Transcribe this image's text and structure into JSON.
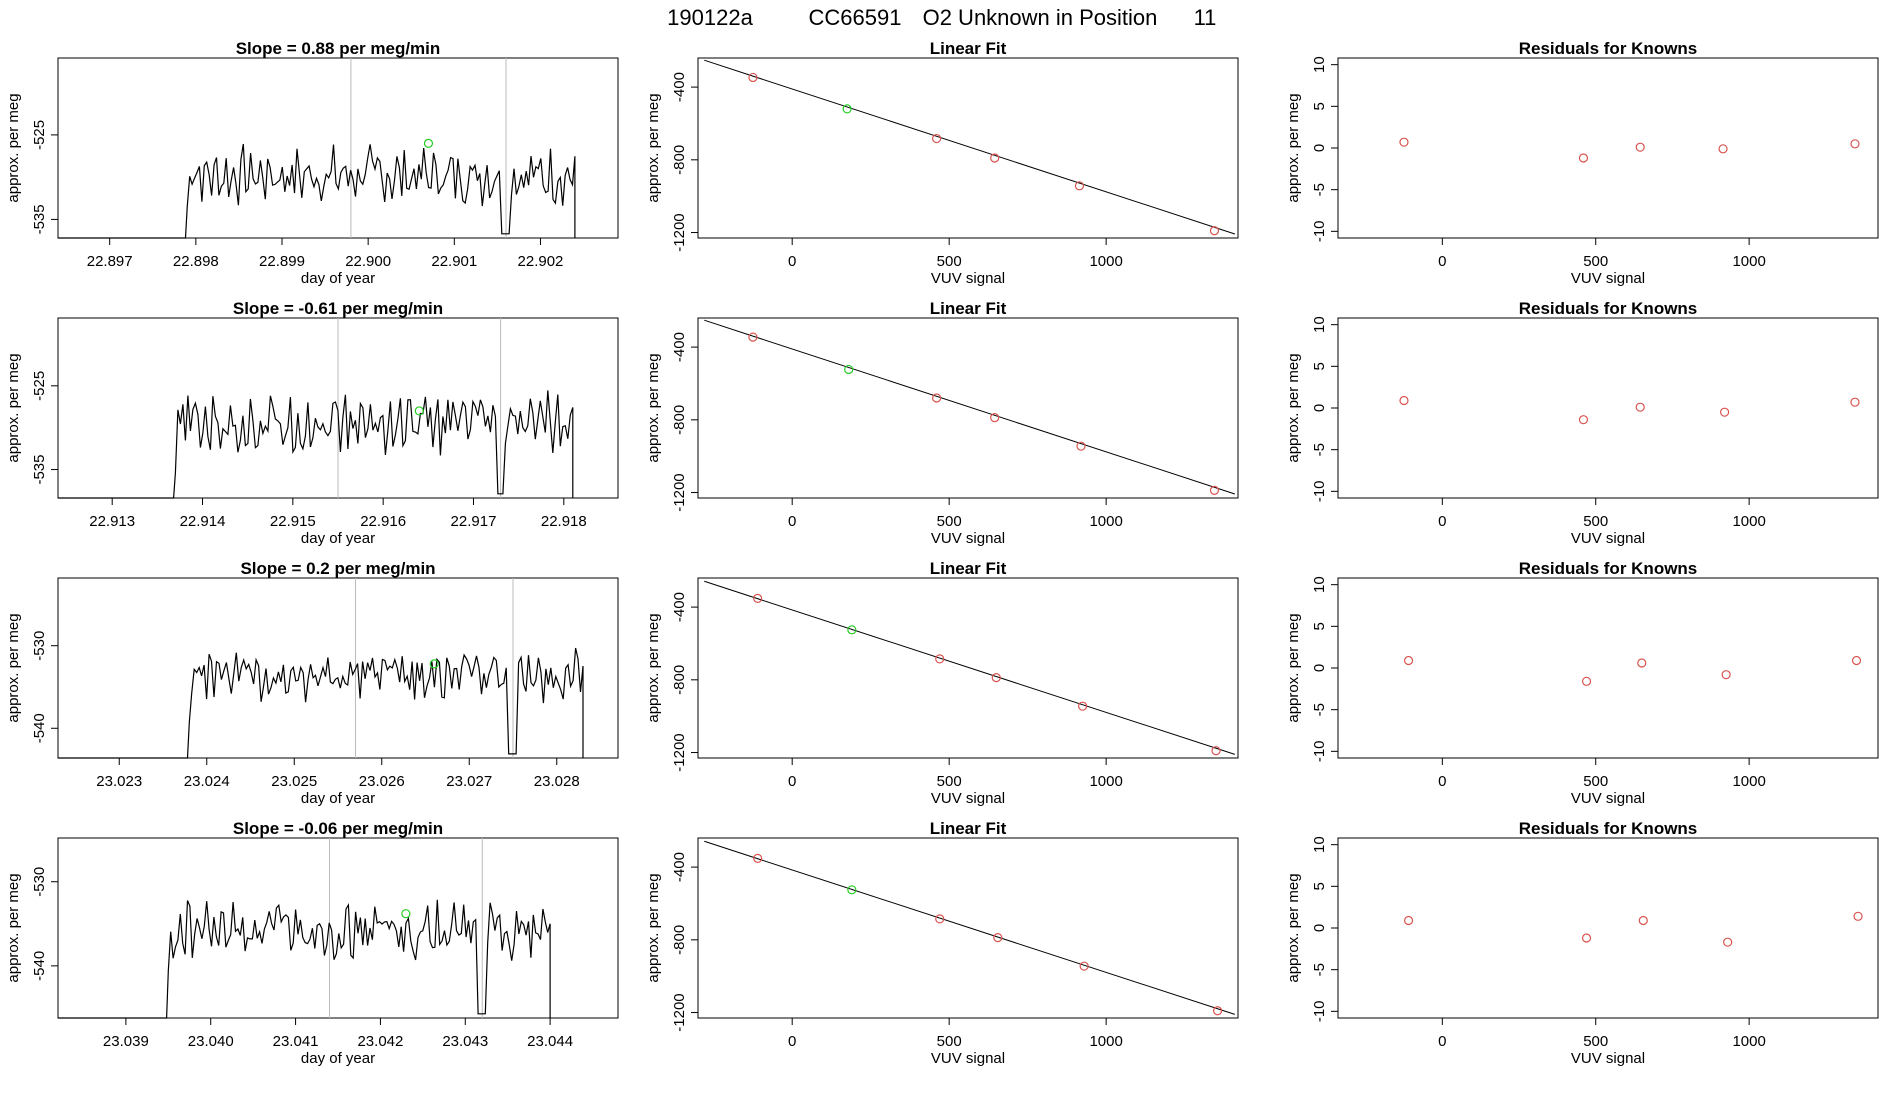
{
  "figure_title": {
    "run": "190122a",
    "cylinder": "CC66591",
    "desc": "O2 Unknown in Position",
    "position": "11"
  },
  "labels": {
    "day_of_year": "day of year",
    "approx_per_meg": "approx. per meg",
    "vuv_signal": "VUV signal",
    "linear_fit": "Linear Fit",
    "residuals": "Residuals for Knowns",
    "slope_prefix": "Slope = ",
    "slope_suffix": " per meg/min"
  },
  "colors": {
    "known": "#d9534f",
    "unknown": "#22cc22",
    "line": "#000000",
    "vline": "#bbbbbb"
  },
  "chart_data": [
    {
      "type": "line",
      "row": 0,
      "title": "Slope =  0.88  per meg/min",
      "slope": "0.88",
      "xlabel": "day of year",
      "ylabel": "approx. per meg",
      "xlim": [
        22.8964,
        22.9029
      ],
      "ylim": [
        -537.2,
        -515.9
      ],
      "xticks": [
        "22.897",
        "22.898",
        "22.899",
        "22.900",
        "22.901",
        "22.902"
      ],
      "yticks": [
        "-535",
        "-525"
      ],
      "x_start": 22.8979,
      "x_end": 22.9024,
      "y_base": -529.8,
      "amplitude": 2.6,
      "ramp": [
        -533.5,
        -531.5,
        -528.5,
        -527.6
      ],
      "vlines": [
        22.8998,
        22.9016
      ],
      "green_point": [
        22.9007,
        -526.0
      ]
    },
    {
      "type": "line",
      "row": 1,
      "title": "Slope =  -0.61  per meg/min",
      "slope": "-0.61",
      "xlabel": "day of year",
      "ylabel": "approx. per meg",
      "xlim": [
        22.9124,
        22.9186
      ],
      "ylim": [
        -538.4,
        -516.9
      ],
      "xticks": [
        "22.913",
        "22.914",
        "22.915",
        "22.916",
        "22.917",
        "22.918"
      ],
      "yticks": [
        "-535",
        "-525"
      ],
      "x_start": 22.9137,
      "x_end": 22.9181,
      "y_base": -529.5,
      "amplitude": 2.8,
      "ramp": [
        -535.5,
        -532.0,
        -529.0,
        -528.5
      ],
      "vlines": [
        22.9155,
        22.9173
      ],
      "green_point": [
        22.9164,
        -528.0
      ]
    },
    {
      "type": "line",
      "row": 2,
      "title": "Slope =  0.2  per meg/min",
      "slope": "0.2",
      "xlabel": "day of year",
      "ylabel": "approx. per meg",
      "xlim": [
        23.0223,
        23.0287
      ],
      "ylim": [
        -543.6,
        -521.8
      ],
      "xticks": [
        "23.023",
        "23.024",
        "23.025",
        "23.026",
        "23.027",
        "23.028"
      ],
      "yticks": [
        "-540",
        "-530"
      ],
      "x_start": 23.0238,
      "x_end": 23.0283,
      "y_base": -533.6,
      "amplitude": 2.3,
      "ramp": [
        -539.5,
        -536.5,
        -534.0,
        -533.0
      ],
      "vlines": [
        23.0257,
        23.0275
      ],
      "green_point": [
        23.0266,
        -532.2
      ]
    },
    {
      "type": "line",
      "row": 3,
      "title": "Slope =  -0.06  per meg/min",
      "slope": "-0.06",
      "xlabel": "day of year",
      "ylabel": "approx. per meg",
      "xlim": [
        23.0382,
        23.0448
      ],
      "ylim": [
        -546.2,
        -524.8
      ],
      "xticks": [
        "23.039",
        "23.040",
        "23.041",
        "23.042",
        "23.043",
        "23.044"
      ],
      "yticks": [
        "-540",
        "-530"
      ],
      "x_start": 23.0395,
      "x_end": 23.044,
      "y_base": -535.8,
      "amplitude": 2.6,
      "ramp": [
        -541.0,
        -539.0,
        -537.0,
        -536.0
      ],
      "vlines": [
        23.0414,
        23.0432
      ],
      "green_point": [
        23.0423,
        -533.8
      ]
    },
    {
      "type": "scatter",
      "row": 0,
      "title": "Linear Fit",
      "xlabel": "VUV signal",
      "ylabel": "approx. per meg",
      "xlim": [
        -300,
        1420
      ],
      "ylim": [
        -1230,
        -240
      ],
      "xticks": [
        0,
        500,
        1000
      ],
      "yticks": [
        -400,
        -800,
        -1200
      ],
      "line": [
        [
          -280,
          -252
        ],
        [
          1410,
          -1208
        ]
      ],
      "known": [
        [
          -125,
          -347
        ],
        [
          460,
          -683
        ],
        [
          645,
          -790
        ],
        [
          915,
          -943
        ],
        [
          1345,
          -1190
        ]
      ],
      "unknown": [
        [
          175,
          -520
        ]
      ]
    },
    {
      "type": "scatter",
      "row": 1,
      "title": "Linear Fit",
      "xlabel": "VUV signal",
      "ylabel": "approx. per meg",
      "xlim": [
        -300,
        1420
      ],
      "ylim": [
        -1230,
        -240
      ],
      "xticks": [
        0,
        500,
        1000
      ],
      "yticks": [
        -400,
        -800,
        -1200
      ],
      "line": [
        [
          -280,
          -252
        ],
        [
          1410,
          -1208
        ]
      ],
      "known": [
        [
          -125,
          -345
        ],
        [
          460,
          -680
        ],
        [
          645,
          -788
        ],
        [
          920,
          -945
        ],
        [
          1345,
          -1188
        ]
      ],
      "unknown": [
        [
          180,
          -523
        ]
      ]
    },
    {
      "type": "scatter",
      "row": 2,
      "title": "Linear Fit",
      "xlabel": "VUV signal",
      "ylabel": "approx. per meg",
      "xlim": [
        -300,
        1420
      ],
      "ylim": [
        -1230,
        -240
      ],
      "xticks": [
        0,
        500,
        1000
      ],
      "yticks": [
        -400,
        -800,
        -1200
      ],
      "line": [
        [
          -280,
          -258
        ],
        [
          1410,
          -1210
        ]
      ],
      "known": [
        [
          -110,
          -352
        ],
        [
          470,
          -685
        ],
        [
          650,
          -788
        ],
        [
          925,
          -945
        ],
        [
          1350,
          -1190
        ]
      ],
      "unknown": [
        [
          190,
          -525
        ]
      ]
    },
    {
      "type": "scatter",
      "row": 3,
      "title": "Linear Fit",
      "xlabel": "VUV signal",
      "ylabel": "approx. per meg",
      "xlim": [
        -300,
        1420
      ],
      "ylim": [
        -1230,
        -240
      ],
      "xticks": [
        0,
        500,
        1000
      ],
      "yticks": [
        -400,
        -800,
        -1200
      ],
      "line": [
        [
          -280,
          -258
        ],
        [
          1410,
          -1210
        ]
      ],
      "known": [
        [
          -110,
          -352
        ],
        [
          470,
          -685
        ],
        [
          655,
          -788
        ],
        [
          930,
          -945
        ],
        [
          1355,
          -1190
        ]
      ],
      "unknown": [
        [
          190,
          -525
        ]
      ]
    },
    {
      "type": "scatter",
      "row": 0,
      "title": "Residuals for Knowns",
      "xlabel": "VUV signal",
      "ylabel": "approx. per meg",
      "xlim": [
        -340,
        1420
      ],
      "ylim": [
        -10.8,
        10.8
      ],
      "xticks": [
        0,
        500,
        1000
      ],
      "yticks": [
        -10,
        -5,
        0,
        5,
        10
      ],
      "points": [
        [
          -125,
          0.7
        ],
        [
          460,
          -1.2
        ],
        [
          645,
          0.1
        ],
        [
          915,
          -0.1
        ],
        [
          1345,
          0.5
        ]
      ]
    },
    {
      "type": "scatter",
      "row": 1,
      "title": "Residuals for Knowns",
      "xlabel": "VUV signal",
      "ylabel": "approx. per meg",
      "xlim": [
        -340,
        1420
      ],
      "ylim": [
        -10.8,
        10.8
      ],
      "xticks": [
        0,
        500,
        1000
      ],
      "yticks": [
        -10,
        -5,
        0,
        5,
        10
      ],
      "points": [
        [
          -125,
          0.9
        ],
        [
          460,
          -1.4
        ],
        [
          645,
          0.1
        ],
        [
          920,
          -0.5
        ],
        [
          1345,
          0.7
        ]
      ]
    },
    {
      "type": "scatter",
      "row": 2,
      "title": "Residuals for Knowns",
      "xlabel": "VUV signal",
      "ylabel": "approx. per meg",
      "xlim": [
        -340,
        1420
      ],
      "ylim": [
        -10.8,
        10.8
      ],
      "xticks": [
        0,
        500,
        1000
      ],
      "yticks": [
        -10,
        -5,
        0,
        5,
        10
      ],
      "points": [
        [
          -110,
          0.9
        ],
        [
          470,
          -1.6
        ],
        [
          650,
          0.6
        ],
        [
          925,
          -0.8
        ],
        [
          1350,
          0.9
        ]
      ]
    },
    {
      "type": "scatter",
      "row": 3,
      "title": "Residuals for Knowns",
      "xlabel": "VUV signal",
      "ylabel": "approx. per meg",
      "xlim": [
        -340,
        1420
      ],
      "ylim": [
        -10.8,
        10.8
      ],
      "xticks": [
        0,
        500,
        1000
      ],
      "yticks": [
        -10,
        -5,
        0,
        5,
        10
      ],
      "points": [
        [
          -110,
          0.9
        ],
        [
          470,
          -1.2
        ],
        [
          655,
          0.9
        ],
        [
          930,
          -1.7
        ],
        [
          1355,
          1.4
        ]
      ]
    }
  ]
}
